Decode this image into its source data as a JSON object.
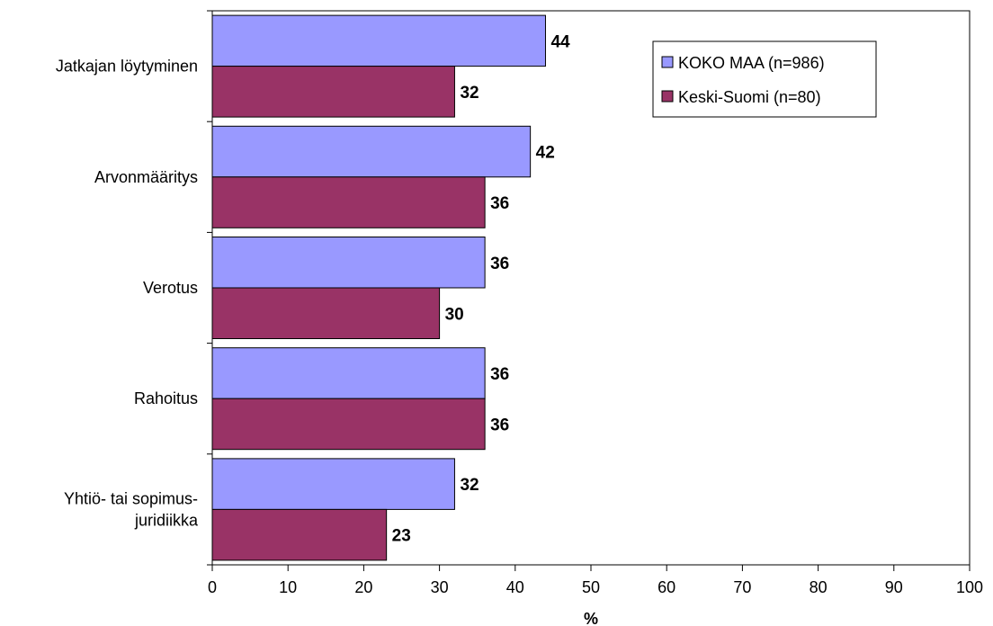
{
  "chart_data": {
    "type": "bar",
    "orientation": "horizontal",
    "categories": [
      [
        "Jatkajan löytyminen"
      ],
      [
        "Arvonmääritys"
      ],
      [
        "Verotus"
      ],
      [
        "Rahoitus"
      ],
      [
        "Yhtiö- tai sopimus-",
        "juridiikka"
      ]
    ],
    "series": [
      {
        "name": "KOKO MAA (n=986)",
        "values": [
          44,
          42,
          36,
          36,
          32
        ],
        "color": "#9999ff"
      },
      {
        "name": "Keski-Suomi (n=80)",
        "values": [
          32,
          36,
          30,
          36,
          23
        ],
        "color": "#993366"
      }
    ],
    "xlabel": "%",
    "xlim": [
      0,
      100
    ],
    "xticks": [
      0,
      10,
      20,
      30,
      40,
      50,
      60,
      70,
      80,
      90,
      100
    ],
    "data_labels": true,
    "grid": false,
    "legend_position": "top-right"
  }
}
